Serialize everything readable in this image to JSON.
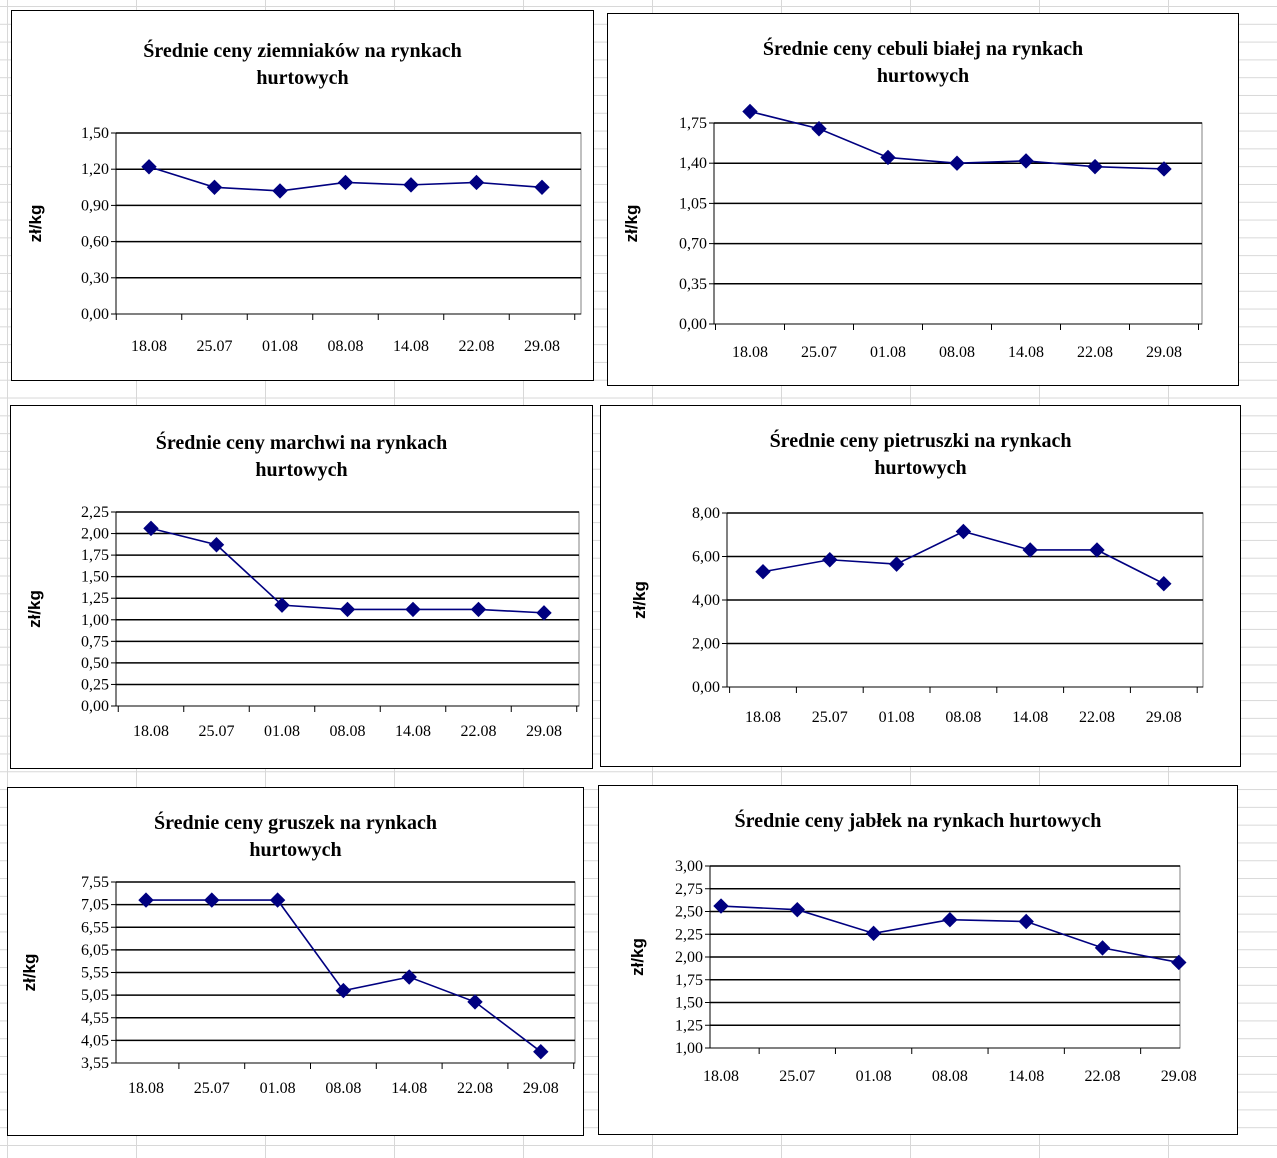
{
  "chart_data": [
    {
      "type": "line",
      "title": "Średnie ceny ziemniaków na rynkach hurtowych",
      "title_lines": [
        "Średnie ceny ziemniaków na rynkach",
        "hurtowych"
      ],
      "ylabel": "zł/kg",
      "categories": [
        "18.08",
        "25.07",
        "01.08",
        "08.08",
        "14.08",
        "22.08",
        "29.08"
      ],
      "series": [
        {
          "values": [
            1.22,
            1.05,
            1.02,
            1.09,
            1.07,
            1.09,
            1.05
          ]
        }
      ],
      "ylim": [
        0,
        1.5
      ],
      "yticks": [
        "0,00",
        "0,30",
        "0,60",
        "0,90",
        "1,20",
        "1,50"
      ],
      "grid": true,
      "color": "#000080"
    },
    {
      "type": "line",
      "title": "Średnie ceny cebuli białej na rynkach hurtowych",
      "title_lines": [
        "Średnie ceny cebuli białej na rynkach",
        "hurtowych"
      ],
      "ylabel": "zł/kg",
      "categories": [
        "18.08",
        "25.07",
        "01.08",
        "08.08",
        "14.08",
        "22.08",
        "29.08"
      ],
      "series": [
        {
          "values": [
            1.85,
            1.7,
            1.45,
            1.4,
            1.42,
            1.37,
            1.35
          ]
        }
      ],
      "ylim": [
        0,
        1.75
      ],
      "yticks": [
        "0,00",
        "0,35",
        "0,70",
        "1,05",
        "1,40",
        "1,75"
      ],
      "grid": true,
      "color": "#000080"
    },
    {
      "type": "line",
      "title": "Średnie ceny marchwi na rynkach hurtowych",
      "title_lines": [
        "Średnie ceny marchwi na rynkach",
        "hurtowych"
      ],
      "ylabel": "zł/kg",
      "categories": [
        "18.08",
        "25.07",
        "01.08",
        "08.08",
        "14.08",
        "22.08",
        "29.08"
      ],
      "series": [
        {
          "values": [
            2.06,
            1.87,
            1.17,
            1.12,
            1.12,
            1.12,
            1.08
          ]
        }
      ],
      "ylim": [
        0,
        2.25
      ],
      "yticks": [
        "0,00",
        "0,25",
        "0,50",
        "0,75",
        "1,00",
        "1,25",
        "1,50",
        "1,75",
        "2,00",
        "2,25"
      ],
      "grid": true,
      "color": "#000080"
    },
    {
      "type": "line",
      "title": "Średnie ceny pietruszki na rynkach hurtowych",
      "title_lines": [
        "Średnie ceny pietruszki na rynkach",
        "hurtowych"
      ],
      "ylabel": "zł/kg",
      "categories": [
        "18.08",
        "25.07",
        "01.08",
        "08.08",
        "14.08",
        "22.08",
        "29.08"
      ],
      "series": [
        {
          "values": [
            5.3,
            5.85,
            5.65,
            7.15,
            6.3,
            6.3,
            4.75
          ]
        }
      ],
      "ylim": [
        0,
        8
      ],
      "yticks": [
        "0,00",
        "2,00",
        "4,00",
        "6,00",
        "8,00"
      ],
      "grid": true,
      "color": "#000080"
    },
    {
      "type": "line",
      "title": "Średnie ceny gruszek na rynkach hurtowych",
      "title_lines": [
        "Średnie ceny gruszek na rynkach",
        "hurtowych"
      ],
      "ylabel": "zł/kg",
      "categories": [
        "18.08",
        "25.07",
        "01.08",
        "08.08",
        "14.08",
        "22.08",
        "29.08"
      ],
      "series": [
        {
          "values": [
            7.15,
            7.15,
            7.15,
            5.15,
            5.45,
            4.9,
            3.8
          ]
        }
      ],
      "ylim": [
        3.55,
        7.55
      ],
      "yticks": [
        "3,55",
        "4,05",
        "4,55",
        "5,05",
        "5,55",
        "6,05",
        "6,55",
        "7,05",
        "7,55"
      ],
      "grid": true,
      "color": "#000080"
    },
    {
      "type": "line",
      "title": "Średnie ceny jabłek na rynkach hurtowych",
      "title_lines": [
        "Średnie ceny jabłek na rynkach hurtowych"
      ],
      "ylabel": "zł/kg",
      "categories": [
        "18.08",
        "25.07",
        "01.08",
        "08.08",
        "14.08",
        "22.08",
        "29.08"
      ],
      "series": [
        {
          "values": [
            2.56,
            2.52,
            2.26,
            2.41,
            2.39,
            2.1,
            1.94
          ]
        }
      ],
      "ylim": [
        1,
        3
      ],
      "yticks": [
        "1,00",
        "1,25",
        "1,50",
        "1,75",
        "2,00",
        "2,25",
        "2,50",
        "2,75",
        "3,00"
      ],
      "grid": true,
      "color": "#000080"
    }
  ]
}
